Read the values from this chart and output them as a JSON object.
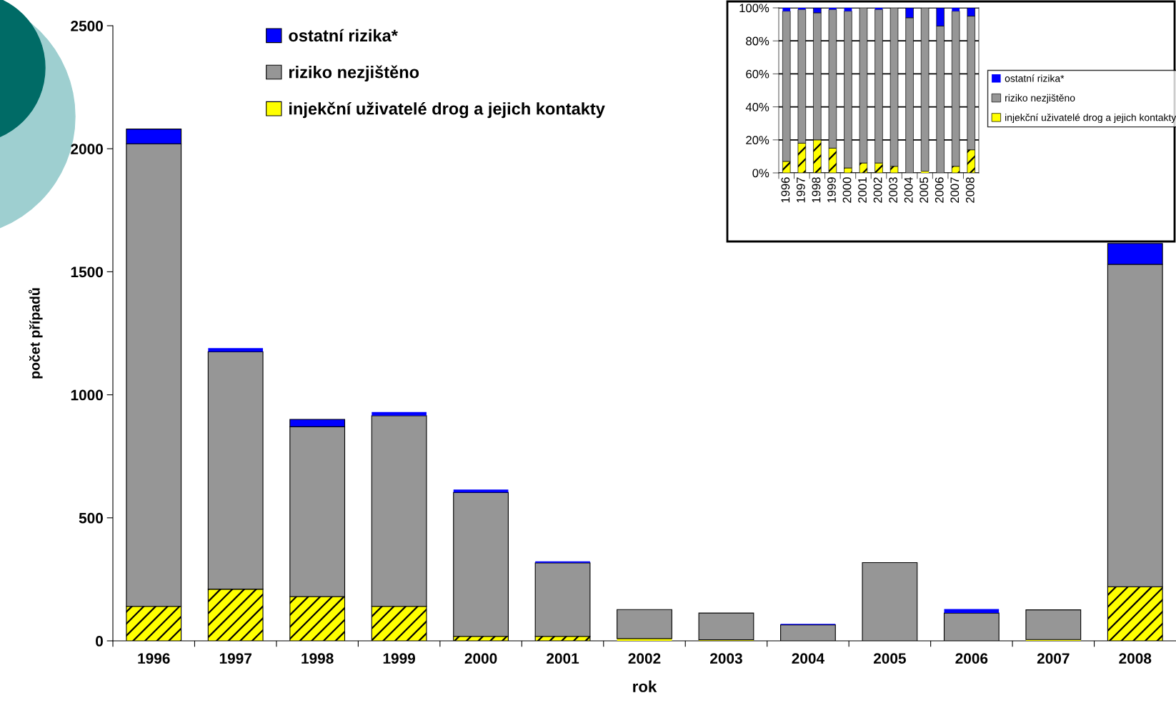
{
  "chart_data": [
    {
      "type": "bar",
      "stacked": true,
      "xlabel": "rok",
      "ylabel": "počet případů",
      "categories": [
        "1996",
        "1997",
        "1998",
        "1999",
        "2000",
        "2001",
        "2002",
        "2003",
        "2004",
        "2005",
        "2006",
        "2007",
        "2008"
      ],
      "series": [
        {
          "name": "injekční uživatelé drog a jejich kontakty",
          "color": "#ffff00",
          "values": [
            140,
            210,
            180,
            140,
            18,
            18,
            9,
            4,
            0,
            null,
            0,
            5,
            220
          ]
        },
        {
          "name": "riziko nezjištěno",
          "color": "#969696",
          "values": [
            1880,
            965,
            690,
            775,
            585,
            299,
            118,
            109,
            65,
            318,
            113,
            121,
            1310
          ]
        },
        {
          "name": "ostatní rizika*",
          "color": "#0000ff",
          "values": [
            60,
            15,
            30,
            15,
            12,
            6,
            0,
            0,
            4,
            null,
            16,
            0,
            85
          ]
        }
      ],
      "ylim": [
        0,
        2500
      ],
      "yticks": [
        0,
        500,
        1000,
        1500,
        2000,
        2500
      ],
      "grid": false,
      "legend": "top"
    },
    {
      "type": "bar",
      "stacked": true,
      "categories": [
        "1996",
        "1997",
        "1998",
        "1999",
        "2000",
        "2001",
        "2002",
        "2003",
        "2004",
        "2005",
        "2006",
        "2007",
        "2008"
      ],
      "series": [
        {
          "name": "injekční uživatelé drog a jejich kontakty",
          "color": "#ffff00",
          "values": [
            7,
            18,
            20,
            15,
            3,
            6,
            6,
            4,
            0,
            1,
            0,
            4,
            14
          ]
        },
        {
          "name": "riziko nezjištěno",
          "color": "#969696",
          "values": [
            91,
            81,
            77,
            84,
            95,
            94,
            93,
            96,
            94,
            99,
            89,
            94,
            81
          ]
        },
        {
          "name": "ostatní rizika*",
          "color": "#0000ff",
          "values": [
            2,
            1,
            3,
            1,
            2,
            0,
            1,
            0,
            6,
            0,
            11,
            2,
            5
          ]
        }
      ],
      "ylim": [
        0,
        100
      ],
      "yticks": [
        {
          "value": 0,
          "label": "0%"
        },
        {
          "value": 20,
          "label": "20%"
        },
        {
          "value": 40,
          "label": "40%"
        },
        {
          "value": 60,
          "label": "60%"
        },
        {
          "value": 80,
          "label": "80%"
        },
        {
          "value": 100,
          "label": "100%"
        }
      ],
      "grid": "y",
      "legend": "right"
    }
  ]
}
